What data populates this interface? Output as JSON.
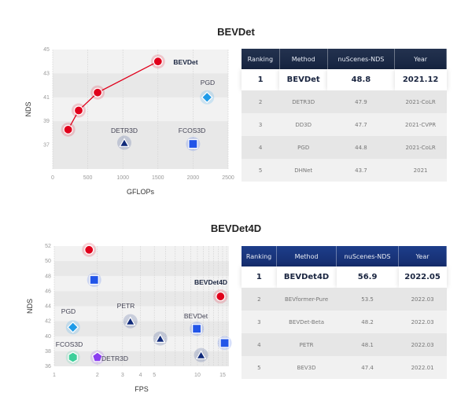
{
  "chart_data": [
    {
      "type": "scatter",
      "title": "BEVDet",
      "xlabel": "GFLOPs",
      "ylabel": "NDS",
      "xlim": [
        0,
        2500
      ],
      "ylim": [
        35,
        45
      ],
      "xticks": [
        0,
        500,
        1000,
        1500,
        2000,
        2500
      ],
      "yticks": [
        37,
        39,
        41,
        43,
        45
      ],
      "series": [
        {
          "name": "BEVDet",
          "marker": "circle",
          "color": "#e0001b",
          "line": true,
          "points": [
            [
              220,
              38.3
            ],
            [
              370,
              39.9
            ],
            [
              640,
              41.4
            ],
            [
              1500,
              44.0
            ]
          ]
        },
        {
          "name": "PGD",
          "marker": "diamond",
          "color": "#1e9be8",
          "points": [
            [
              2200,
              41.0
            ]
          ]
        },
        {
          "name": "DETR3D",
          "marker": "triangle",
          "color": "#102a7a",
          "points": [
            [
              1020,
              37.2
            ]
          ]
        },
        {
          "name": "FCOS3D",
          "marker": "square",
          "color": "#2255e8",
          "points": [
            [
              2000,
              37.1
            ]
          ]
        }
      ]
    },
    {
      "type": "scatter",
      "title": "BEVDet4D",
      "xlabel": "FPS",
      "ylabel": "NDS",
      "xscale": "log",
      "xlim": [
        1,
        16.6
      ],
      "ylim": [
        36,
        52
      ],
      "xticks": [
        1,
        2,
        3,
        4,
        5,
        10,
        15
      ],
      "yticks": [
        36,
        38,
        40,
        42,
        44,
        46,
        48,
        50,
        52
      ],
      "series": [
        {
          "name": "BEVDet4D",
          "marker": "circle",
          "color": "#e0001b",
          "points": [
            [
              1.75,
              51.5
            ],
            [
              14.5,
              45.3
            ]
          ]
        },
        {
          "name": "BEVDet",
          "marker": "square",
          "color": "#2255e8",
          "points": [
            [
              1.9,
              47.5
            ],
            [
              9.9,
              41.0
            ],
            [
              15.5,
              39.1
            ]
          ]
        },
        {
          "name": "PETR",
          "marker": "triangle",
          "color": "#102a7a",
          "points": [
            [
              3.4,
              42.0
            ],
            [
              5.5,
              39.7
            ],
            [
              10.6,
              37.5
            ]
          ]
        },
        {
          "name": "PGD",
          "marker": "diamond",
          "color": "#1e9be8",
          "points": [
            [
              1.35,
              41.2
            ]
          ]
        },
        {
          "name": "FCOS3D",
          "marker": "hexagon",
          "color": "#3ccf9a",
          "points": [
            [
              1.35,
              37.2
            ]
          ]
        },
        {
          "name": "DETR3D",
          "marker": "pentagon",
          "color": "#8a3cf0",
          "points": [
            [
              2.0,
              37.2
            ]
          ]
        }
      ]
    }
  ],
  "labels1": {
    "bevdet": "BEVDet",
    "pgd": "PGD",
    "detr3d": "DETR3D",
    "fcos3d": "FCOS3D"
  },
  "labels2": {
    "bevdet4d": "BEVDet4D",
    "pgd": "PGD",
    "petr": "PETR",
    "bevdet": "BEVDet",
    "fcos3d": "FCOS3D",
    "detr3d": "DETR3D"
  },
  "table1": {
    "headers": [
      "Ranking",
      "Method",
      "nuScenes-NDS",
      "Year"
    ],
    "rows": [
      [
        "1",
        "BEVDet",
        "48.8",
        "2021.12"
      ],
      [
        "2",
        "DETR3D",
        "47.9",
        "2021-CoLR"
      ],
      [
        "3",
        "DD3D",
        "47.7",
        "2021-CVPR"
      ],
      [
        "4",
        "PGD",
        "44.8",
        "2021-CoLR"
      ],
      [
        "5",
        "DHNet",
        "43.7",
        "2021"
      ]
    ]
  },
  "table2": {
    "headers": [
      "Ranking",
      "Method",
      "nuScenes-NDS",
      "Year"
    ],
    "rows": [
      [
        "1",
        "BEVDet4D",
        "56.9",
        "2022.05"
      ],
      [
        "2",
        "BEVformer-Pure",
        "53.5",
        "2022.03"
      ],
      [
        "3",
        "BEVDet-Beta",
        "48.2",
        "2022.03"
      ],
      [
        "4",
        "PETR",
        "48.1",
        "2022.03"
      ],
      [
        "5",
        "BEV3D",
        "47.4",
        "2022.01"
      ]
    ]
  }
}
